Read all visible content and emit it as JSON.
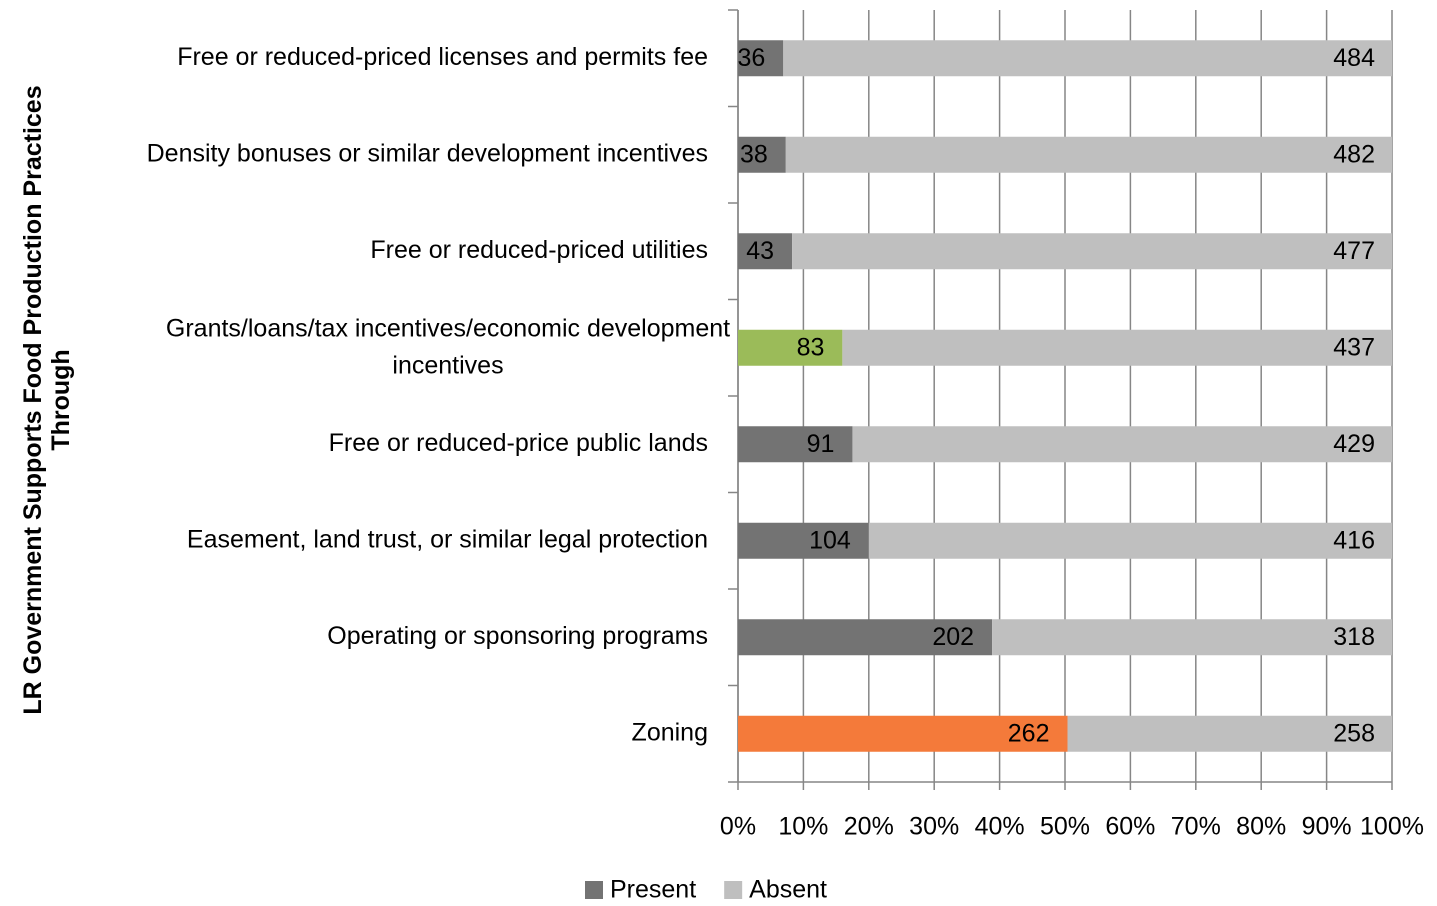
{
  "chart_data": {
    "type": "bar",
    "orientation": "horizontal",
    "stacking": "percent",
    "y_axis_label": "LR Government Supports Food Production Practices Through",
    "categories": [
      "Free or reduced-priced licenses and permits fee",
      "Density bonuses or similar development incentives",
      "Free or reduced-priced utilities",
      "Grants/loans/tax incentives/economic development incentives",
      "Free or reduced-price public lands",
      "Easement, land trust, or similar legal protection",
      "Operating or sponsoring programs",
      "Zoning"
    ],
    "series": [
      {
        "name": "Present",
        "color": "#737373",
        "colors": [
          "#737373",
          "#737373",
          "#737373",
          "#9bbb59",
          "#737373",
          "#737373",
          "#737373",
          "#f47a3a"
        ],
        "values": [
          36,
          38,
          43,
          83,
          91,
          104,
          202,
          262
        ]
      },
      {
        "name": "Absent",
        "color": "#bfbfbf",
        "values": [
          484,
          482,
          477,
          437,
          429,
          416,
          318,
          258
        ]
      }
    ],
    "xlim": [
      0,
      100
    ],
    "xticks": [
      {
        "value": 0,
        "label": "0%"
      },
      {
        "value": 10,
        "label": "10%"
      },
      {
        "value": 20,
        "label": "20%"
      },
      {
        "value": 30,
        "label": "30%"
      },
      {
        "value": 40,
        "label": "40%"
      },
      {
        "value": 50,
        "label": "50%"
      },
      {
        "value": 60,
        "label": "60%"
      },
      {
        "value": 70,
        "label": "70%"
      },
      {
        "value": 80,
        "label": "80%"
      },
      {
        "value": 90,
        "label": "90%"
      },
      {
        "value": 100,
        "label": "100%"
      }
    ],
    "grid": true,
    "legend": "bottom"
  }
}
